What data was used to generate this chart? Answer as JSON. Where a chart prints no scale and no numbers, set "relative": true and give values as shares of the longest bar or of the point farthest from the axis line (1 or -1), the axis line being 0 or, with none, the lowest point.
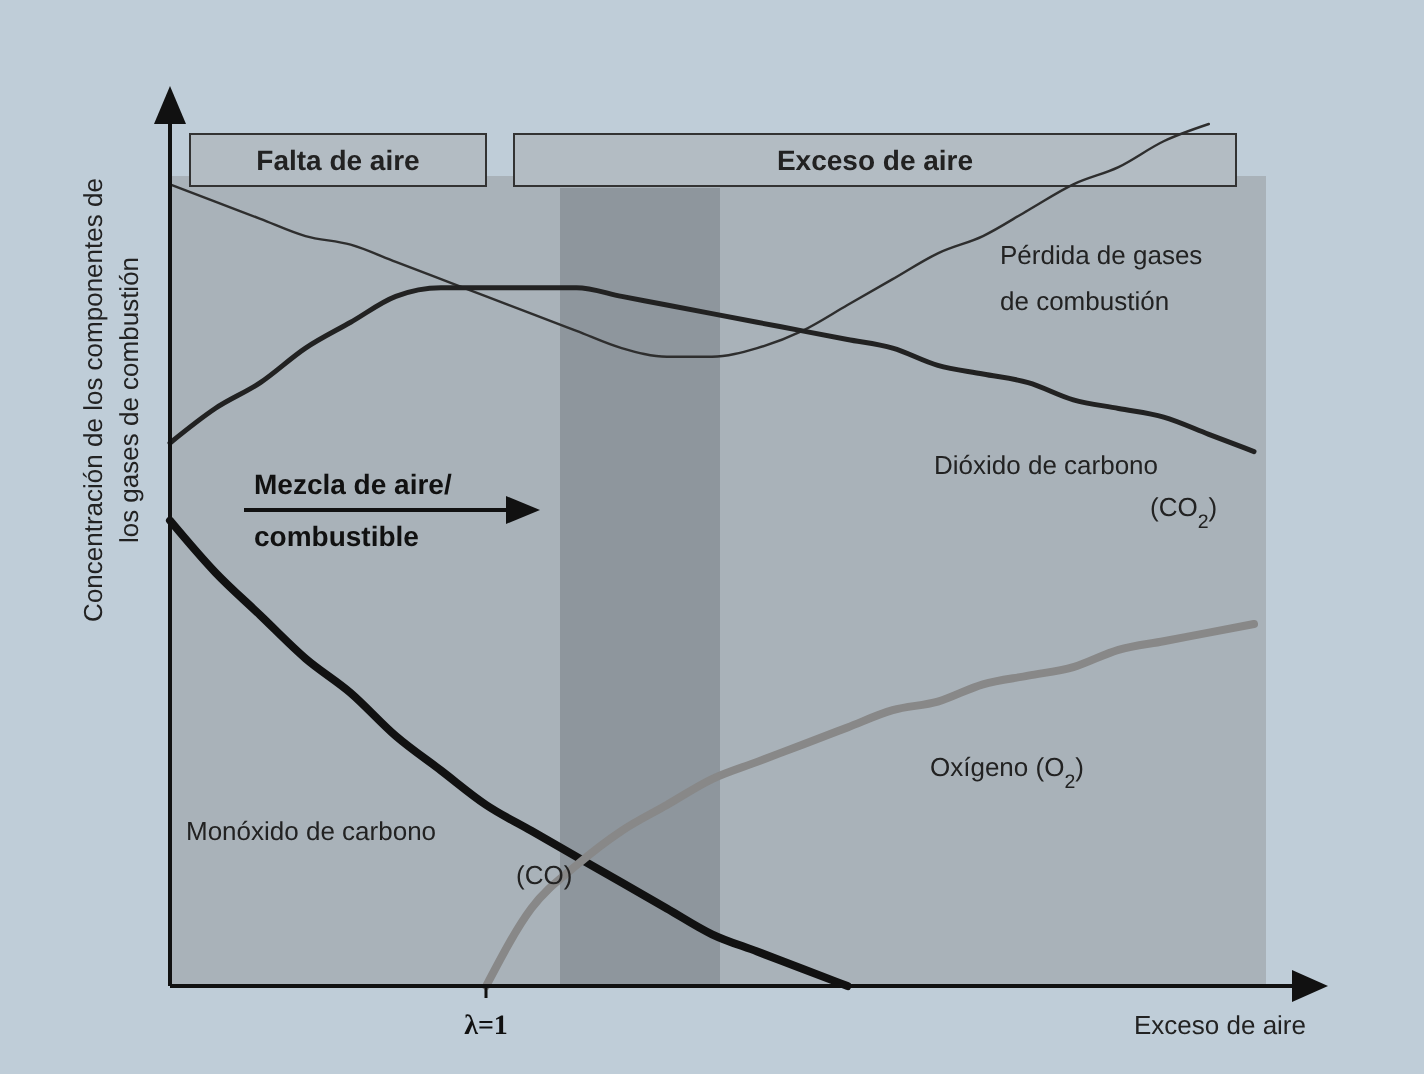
{
  "chart_data": {
    "type": "line",
    "relative": true,
    "xlabel": "Exceso de aire",
    "ylabel": "Concentración de los componentes de los gases de combustión",
    "categories": [
      null,
      null,
      null,
      null,
      null,
      null,
      null,
      null,
      null,
      null,
      null,
      null,
      null,
      null,
      null,
      null,
      null,
      null,
      null,
      null,
      null,
      null,
      null,
      null,
      null
    ],
    "series": [
      {
        "name": "Pérdida de gases de combustión",
        "color": "#2e2e2e",
        "values": [
          0.93,
          0.91,
          0.89,
          0.87,
          0.86,
          0.84,
          0.82,
          0.8,
          0.78,
          0.76,
          0.74,
          0.73,
          0.73,
          0.74,
          0.76,
          0.79,
          0.82,
          0.85,
          0.87,
          0.9,
          0.93,
          0.95,
          0.98,
          1,
          null
        ]
      },
      {
        "name": "Dióxido de carbono (CO$_{2}$)",
        "color": "#222222",
        "values": [
          0.63,
          0.67,
          0.7,
          0.74,
          0.77,
          0.8,
          0.81,
          0.81,
          0.81,
          0.81,
          0.8,
          0.79,
          0.78,
          0.77,
          0.76,
          0.75,
          0.74,
          0.72,
          0.71,
          0.7,
          0.68,
          0.67,
          0.66,
          0.64,
          0.62
        ]
      },
      {
        "name": "Monóxido de carbono (CO)",
        "color": "#111111",
        "values": [
          0.54,
          0.48,
          0.43,
          0.38,
          0.34,
          0.29,
          0.25,
          0.21,
          0.18,
          0.15,
          0.12,
          0.09,
          0.06,
          0.04,
          0.02,
          0,
          null,
          null,
          null,
          null,
          null,
          null,
          null,
          null,
          null
        ]
      },
      {
        "name": "Oxígeno (O$_{2}$)",
        "color": "#888888",
        "values": [
          null,
          null,
          null,
          null,
          null,
          null,
          null,
          0,
          0.09,
          0.14,
          0.18,
          0.21,
          0.24,
          0.26,
          0.28,
          0.3,
          0.32,
          0.33,
          0.35,
          0.36,
          0.37,
          0.39,
          0.4,
          0.41,
          0.42
        ]
      }
    ],
    "annotations": [
      "Falta de aire",
      "Exceso de aire",
      "Mezcla de aire/ combustible",
      "λ=1"
    ]
  }
}
